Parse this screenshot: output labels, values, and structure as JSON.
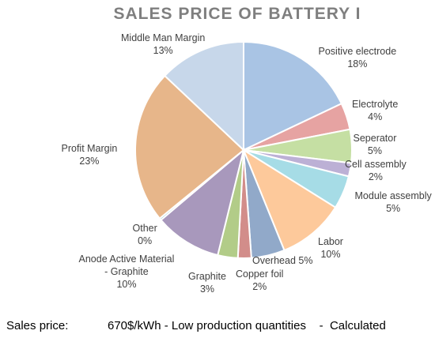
{
  "chart_data": {
    "type": "pie",
    "title": "SALES PRICE OF BATTERY I",
    "slices": [
      {
        "label": "Positive electrode",
        "value": 18,
        "value_label": "18%",
        "color": "#a9c4e4"
      },
      {
        "label": "Electrolyte",
        "value": 4,
        "value_label": "4%",
        "color": "#e6a3a2"
      },
      {
        "label": "Seperator",
        "value": 5,
        "value_label": "5%",
        "color": "#c5dfa3"
      },
      {
        "label": "Cell assembly",
        "value": 2,
        "value_label": "2%",
        "color": "#bcb0d5"
      },
      {
        "label": "Module assembly",
        "value": 5,
        "value_label": "5%",
        "color": "#a6dce6"
      },
      {
        "label": "Labor",
        "value": 10,
        "value_label": "10%",
        "color": "#fdc99b"
      },
      {
        "label": "Overhead",
        "value": 5,
        "value_label": "5%",
        "color": "#91a9c9"
      },
      {
        "label": "Copper foil",
        "value": 2,
        "value_label": "2%",
        "color": "#d28d8a"
      },
      {
        "label": "Graphite",
        "value": 3,
        "value_label": "3%",
        "color": "#b2cc88"
      },
      {
        "label": "Anode Active Material - Graphite",
        "value": 10,
        "value_label": "10%",
        "color": "#a898bc"
      },
      {
        "label": "Other",
        "value": 0.3,
        "value_label": "0%",
        "color": "#8ec6d0"
      },
      {
        "label": "Profit Margin",
        "value": 23,
        "value_label": "23%",
        "color": "#e7b68a"
      },
      {
        "label": "Middle Man Margin",
        "value": 13,
        "value_label": "13%",
        "color": "#c7d7ea"
      }
    ]
  },
  "footer": {
    "label": "Sales price:",
    "text": "670$/kWh - Low production quantities    -  Calculated"
  }
}
